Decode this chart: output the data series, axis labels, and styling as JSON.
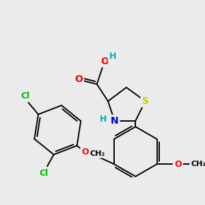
{
  "bg_color": "#ebebeb",
  "fig_size": [
    3.0,
    3.0
  ],
  "dpi": 100,
  "atom_colors": {
    "C": "#000000",
    "H": "#00aaaa",
    "O": "#ff0000",
    "N": "#0000cc",
    "S": "#cccc00",
    "Cl": "#00bb00"
  },
  "bond_color": "#000000",
  "bond_width": 1.4,
  "font_size": 10
}
